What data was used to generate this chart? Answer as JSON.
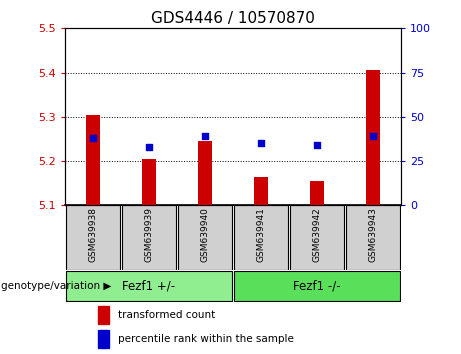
{
  "title": "GDS4446 / 10570870",
  "samples": [
    "GSM639938",
    "GSM639939",
    "GSM639940",
    "GSM639941",
    "GSM639942",
    "GSM639943"
  ],
  "bar_values": [
    5.305,
    5.205,
    5.245,
    5.165,
    5.155,
    5.405
  ],
  "percentile_values": [
    38,
    33,
    39,
    35,
    34,
    39
  ],
  "ylim_left": [
    5.1,
    5.5
  ],
  "ylim_right": [
    0,
    100
  ],
  "yticks_left": [
    5.1,
    5.2,
    5.3,
    5.4,
    5.5
  ],
  "yticks_right": [
    0,
    25,
    50,
    75,
    100
  ],
  "bar_color": "#cc0000",
  "dot_color": "#0000cc",
  "bar_bottom": 5.1,
  "bar_width": 0.25,
  "groups": [
    {
      "label": "Fezf1 +/-",
      "indices": [
        0,
        1,
        2
      ],
      "color": "#90ee90"
    },
    {
      "label": "Fezf1 -/-",
      "indices": [
        3,
        4,
        5
      ],
      "color": "#5adf5a"
    }
  ],
  "group_label": "genotype/variation",
  "legend_red": "transformed count",
  "legend_blue": "percentile rank within the sample",
  "tick_color_left": "#cc0000",
  "tick_color_right": "#0000cc",
  "sample_box_color": "#d0d0d0",
  "plot_bg": "#ffffff"
}
